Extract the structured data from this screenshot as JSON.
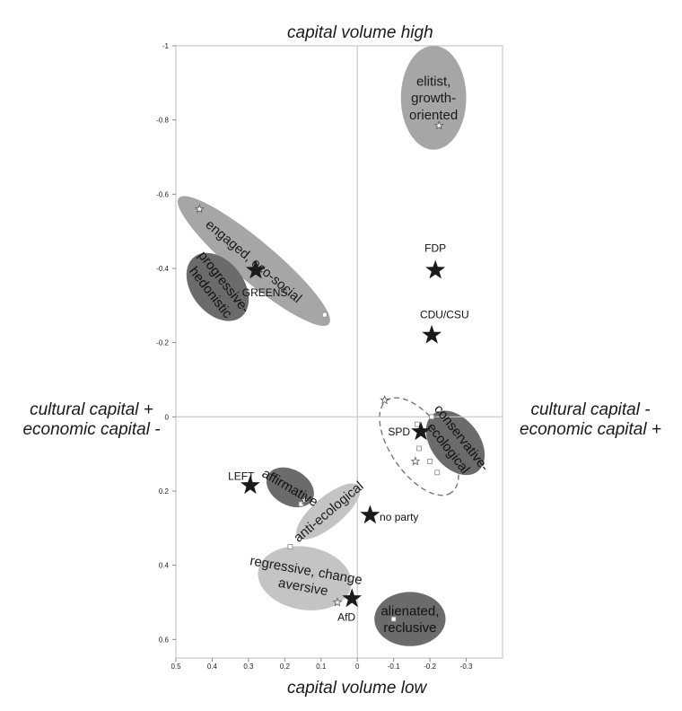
{
  "chart_data": {
    "type": "scatter",
    "title_top": "capital volume high",
    "title_bottom": "capital volume low",
    "left_label": [
      "cultural capital +",
      "economic capital -"
    ],
    "right_label": [
      "cultural capital -",
      "economic capital +"
    ],
    "xlim": [
      0.5,
      -0.4
    ],
    "ylim": [
      -1.0,
      0.65
    ],
    "x_reversed": true,
    "y_reversed": true,
    "x_ticks": [
      {
        "v": 0.5,
        "label": "0.5"
      },
      {
        "v": 0.4,
        "label": "0.4"
      },
      {
        "v": 0.3,
        "label": "0.3"
      },
      {
        "v": 0.2,
        "label": "0.2"
      },
      {
        "v": 0.1,
        "label": "0.1"
      },
      {
        "v": 0.0,
        "label": "0"
      },
      {
        "v": -0.1,
        "label": "-0.1"
      },
      {
        "v": -0.2,
        "label": "-0.2"
      },
      {
        "v": -0.3,
        "label": "-0.3"
      }
    ],
    "y_ticks": [
      {
        "v": -1.0,
        "label": "-1"
      },
      {
        "v": -0.8,
        "label": "-0.8"
      },
      {
        "v": -0.6,
        "label": "-0.6"
      },
      {
        "v": -0.4,
        "label": "-0.4"
      },
      {
        "v": -0.2,
        "label": "-0.2"
      },
      {
        "v": 0.0,
        "label": "0"
      },
      {
        "v": 0.2,
        "label": "0.2"
      },
      {
        "v": 0.4,
        "label": "0.4"
      },
      {
        "v": 0.6,
        "label": "0.6"
      }
    ],
    "clusters": [
      {
        "id": "elitist",
        "lines": [
          "elitist,",
          "growth-",
          "oriented"
        ],
        "cx": -0.21,
        "cy": -0.86,
        "rx": 0.09,
        "ry": 0.14,
        "angle": 0,
        "fill": "#a6a6a6",
        "text_color": "#1a1a1a",
        "font": 15
      },
      {
        "id": "engaged",
        "lines": [
          "engaged, eco-social"
        ],
        "cx": 0.285,
        "cy": -0.42,
        "rx": 0.27,
        "ry": 0.055,
        "angle": 40,
        "fill": "#a6a6a6",
        "text_color": "#1a1a1a",
        "font": 15
      },
      {
        "id": "progressive",
        "lines": [
          "progressive-",
          "hedonistic"
        ],
        "cx": 0.385,
        "cy": -0.35,
        "rx": 0.105,
        "ry": 0.07,
        "angle": 52,
        "fill": "#6b6b6b",
        "text_color": "#111111",
        "font": 15
      },
      {
        "id": "conservative",
        "lines": [
          "conservative-",
          "ecological"
        ],
        "cx": -0.27,
        "cy": 0.07,
        "rx": 0.1,
        "ry": 0.065,
        "angle": 52,
        "fill": "#6b6b6b",
        "text_color": "#111111",
        "font": 15
      },
      {
        "id": "affirmative",
        "lines": [
          "affirmative"
        ],
        "cx": 0.185,
        "cy": 0.19,
        "rx": 0.07,
        "ry": 0.048,
        "angle": 30,
        "fill": "#6b6b6b",
        "text_color": "#111111",
        "font": 15
      },
      {
        "id": "anti",
        "lines": [
          "anti-ecological"
        ],
        "cx": 0.08,
        "cy": 0.255,
        "rx": 0.11,
        "ry": 0.04,
        "angle": -40,
        "fill": "#c4c4c4",
        "text_color": "#1a1a1a",
        "font": 15
      },
      {
        "id": "regressive",
        "lines": [
          "regressive, change",
          "aversive"
        ],
        "cx": 0.145,
        "cy": 0.435,
        "rx": 0.13,
        "ry": 0.085,
        "angle": 10,
        "fill": "#c4c4c4",
        "text_color": "#1a1a1a",
        "font": 15
      },
      {
        "id": "alienated",
        "lines": [
          "alienated,",
          "reclusive"
        ],
        "cx": -0.145,
        "cy": 0.545,
        "rx": 0.098,
        "ry": 0.073,
        "angle": 0,
        "fill": "#6b6b6b",
        "text_color": "#111111",
        "font": 15
      }
    ],
    "spd_region": {
      "cx": -0.17,
      "cy": 0.08,
      "rx": 0.155,
      "ry": 0.075,
      "angle": 55
    },
    "parties": [
      {
        "name": "GREENS",
        "x": 0.28,
        "y": -0.395,
        "lx": 0.255,
        "ly": -0.335
      },
      {
        "name": "FDP",
        "x": -0.215,
        "y": -0.395,
        "lx": -0.215,
        "ly": -0.455
      },
      {
        "name": "CDU/CSU",
        "x": -0.205,
        "y": -0.22,
        "lx": -0.24,
        "ly": -0.275
      },
      {
        "name": "SPD",
        "x": -0.175,
        "y": 0.04,
        "lx": -0.115,
        "ly": 0.04
      },
      {
        "name": "LEFT",
        "x": 0.295,
        "y": 0.185,
        "lx": 0.32,
        "ly": 0.16
      },
      {
        "name": "no party",
        "x": -0.035,
        "y": 0.265,
        "lx": -0.115,
        "ly": 0.27
      },
      {
        "name": "AfD",
        "x": 0.015,
        "y": 0.49,
        "lx": 0.03,
        "ly": 0.54
      }
    ],
    "small_stars": [
      {
        "x": -0.225,
        "y": -0.785
      },
      {
        "x": 0.435,
        "y": -0.56
      },
      {
        "x": -0.075,
        "y": -0.045
      },
      {
        "x": -0.16,
        "y": 0.12
      },
      {
        "x": 0.145,
        "y": 0.225
      },
      {
        "x": 0.055,
        "y": 0.5
      }
    ],
    "small_squares": [
      {
        "x": 0.09,
        "y": -0.275
      },
      {
        "x": -0.205,
        "y": 0.0
      },
      {
        "x": -0.165,
        "y": 0.02
      },
      {
        "x": -0.17,
        "y": 0.085
      },
      {
        "x": -0.2,
        "y": 0.12
      },
      {
        "x": -0.22,
        "y": 0.15
      },
      {
        "x": 0.155,
        "y": 0.235
      },
      {
        "x": 0.185,
        "y": 0.35
      },
      {
        "x": -0.1,
        "y": 0.545
      }
    ]
  }
}
